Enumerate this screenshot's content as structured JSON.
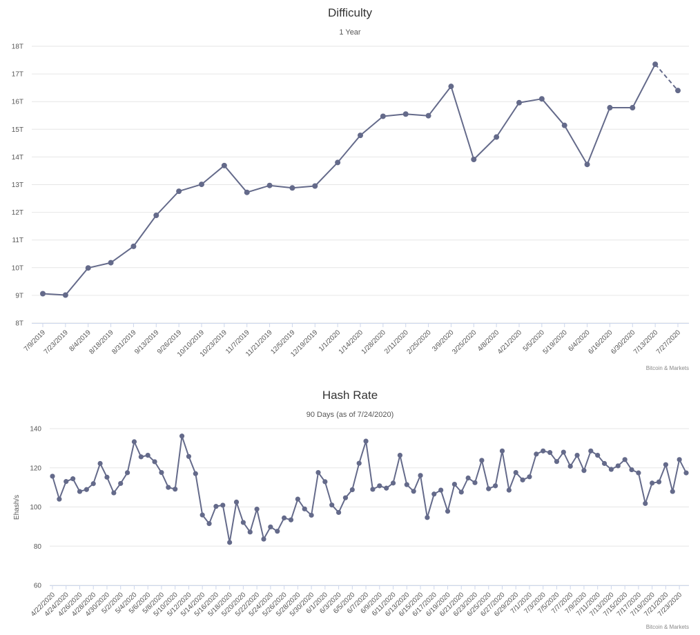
{
  "colors": {
    "series": "#646a8a",
    "grid": "#e6e6e6",
    "axis": "#ccd6eb"
  },
  "chart_data": [
    {
      "type": "line",
      "title": "Difficulty",
      "subtitle": "1 Year",
      "credit": "Bitcoin & Markets",
      "ylabel": "",
      "ylim": [
        8,
        18
      ],
      "yticks": [
        8,
        9,
        10,
        11,
        12,
        13,
        14,
        15,
        16,
        17,
        18
      ],
      "ytick_labels": [
        "8T",
        "9T",
        "10T",
        "11T",
        "12T",
        "13T",
        "14T",
        "15T",
        "16T",
        "17T",
        "18T"
      ],
      "grid": true,
      "legend": "none",
      "last_segment_dashed": true,
      "x": [
        "7/9/2019",
        "7/23/2019",
        "8/4/2019",
        "8/18/2019",
        "8/31/2019",
        "9/13/2019",
        "9/26/2019",
        "10/10/2019",
        "10/23/2019",
        "11/7/2019",
        "11/21/2019",
        "12/5/2019",
        "12/19/2019",
        "1/1/2020",
        "1/14/2020",
        "1/28/2020",
        "2/11/2020",
        "2/25/2020",
        "3/9/2020",
        "3/25/2020",
        "4/8/2020",
        "4/21/2020",
        "5/5/2020",
        "5/19/2020",
        "6/4/2020",
        "6/16/2020",
        "6/30/2020",
        "7/13/2020",
        "7/27/2020"
      ],
      "series": [
        {
          "values": [
            9.06,
            9.01,
            9.99,
            10.18,
            10.77,
            11.89,
            12.76,
            13.01,
            13.69,
            12.72,
            12.97,
            12.88,
            12.95,
            13.8,
            14.78,
            15.47,
            15.55,
            15.49,
            16.55,
            13.91,
            14.72,
            15.96,
            16.1,
            15.14,
            13.73,
            15.78,
            15.78,
            17.35,
            16.4
          ]
        }
      ]
    },
    {
      "type": "line",
      "title": "Hash Rate",
      "subtitle": "90 Days (as of 7/24/2020)",
      "credit": "Bitcoin & Markets",
      "ylabel": "Ehash/s",
      "ylim": [
        60,
        140
      ],
      "yticks": [
        60,
        80,
        100,
        120,
        140
      ],
      "ytick_labels": [
        "60",
        "80",
        "100",
        "120",
        "140"
      ],
      "grid": true,
      "legend": "none",
      "x_start": "4/22/2020",
      "x_labels": [
        "4/22/2020",
        "4/24/2020",
        "4/26/2020",
        "4/28/2020",
        "4/30/2020",
        "5/2/2020",
        "5/4/2020",
        "5/6/2020",
        "5/8/2020",
        "5/10/2020",
        "5/12/2020",
        "5/14/2020",
        "5/16/2020",
        "5/18/2020",
        "5/20/2020",
        "5/22/2020",
        "5/24/2020",
        "5/26/2020",
        "5/28/2020",
        "5/30/2020",
        "6/1/2020",
        "6/3/2020",
        "6/5/2020",
        "6/7/2020",
        "6/9/2020",
        "6/11/2020",
        "6/13/2020",
        "6/15/2020",
        "6/17/2020",
        "6/19/2020",
        "6/21/2020",
        "6/23/2020",
        "6/25/2020",
        "6/27/2020",
        "6/29/2020",
        "7/1/2020",
        "7/3/2020",
        "7/5/2020",
        "7/7/2020",
        "7/9/2020",
        "7/11/2020",
        "7/13/2020",
        "7/15/2020",
        "7/17/2020",
        "7/19/2020",
        "7/21/2020",
        "7/23/2020"
      ],
      "series": [
        {
          "values": [
            115.7,
            104,
            113,
            114.4,
            107.9,
            108.9,
            111.9,
            122.2,
            115.2,
            107.2,
            112,
            117.5,
            133.3,
            125.6,
            126.4,
            123.1,
            117.6,
            110,
            109.1,
            136.2,
            125.8,
            117,
            95.9,
            91.5,
            100.3,
            100.9,
            81.9,
            102.5,
            92.1,
            87.2,
            98.9,
            83.6,
            89.8,
            87.6,
            94.4,
            93.4,
            104,
            99,
            95.8,
            117.6,
            112.9,
            101,
            97.2,
            104.7,
            108.8,
            122.3,
            133.6,
            109,
            110.8,
            109.6,
            112.2,
            126.4,
            111.4,
            108,
            116.1,
            94.6,
            106.6,
            108.6,
            97.8,
            111.6,
            107.6,
            114.8,
            112.4,
            123.8,
            109.3,
            110.8,
            128.6,
            108.6,
            117.6,
            113.8,
            115.4,
            127,
            128.6,
            127.8,
            123.2,
            128,
            120.8,
            126.4,
            118.6,
            128.6,
            126.4,
            122.2,
            119.2,
            121,
            124.2,
            119,
            117.4,
            101.8,
            112.2,
            112.8,
            121.6,
            107.9,
            124.2,
            117.4
          ]
        }
      ]
    }
  ]
}
